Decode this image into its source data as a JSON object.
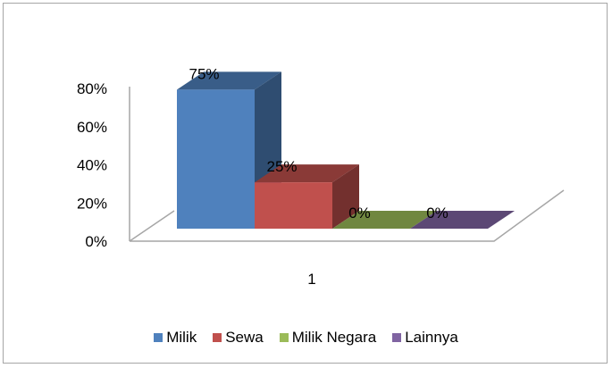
{
  "chart_data": {
    "type": "bar",
    "style": "3d-column",
    "categories": [
      "1"
    ],
    "series": [
      {
        "name": "Milik",
        "values": [
          0.75
        ],
        "label": "75%",
        "color": "#4f81bd"
      },
      {
        "name": "Sewa",
        "values": [
          0.25
        ],
        "label": "25%",
        "color": "#c0504d"
      },
      {
        "name": "Milik Negara",
        "values": [
          0
        ],
        "label": "0%",
        "color": "#9bbb59"
      },
      {
        "name": "Lainnya",
        "values": [
          0
        ],
        "label": "0%",
        "color": "#8064a2"
      }
    ],
    "y_ticks": [
      "0%",
      "20%",
      "40%",
      "60%",
      "80%"
    ],
    "ylim": [
      0,
      0.8
    ],
    "x_tick_label": "1",
    "grid": false,
    "legend_position": "bottom"
  }
}
